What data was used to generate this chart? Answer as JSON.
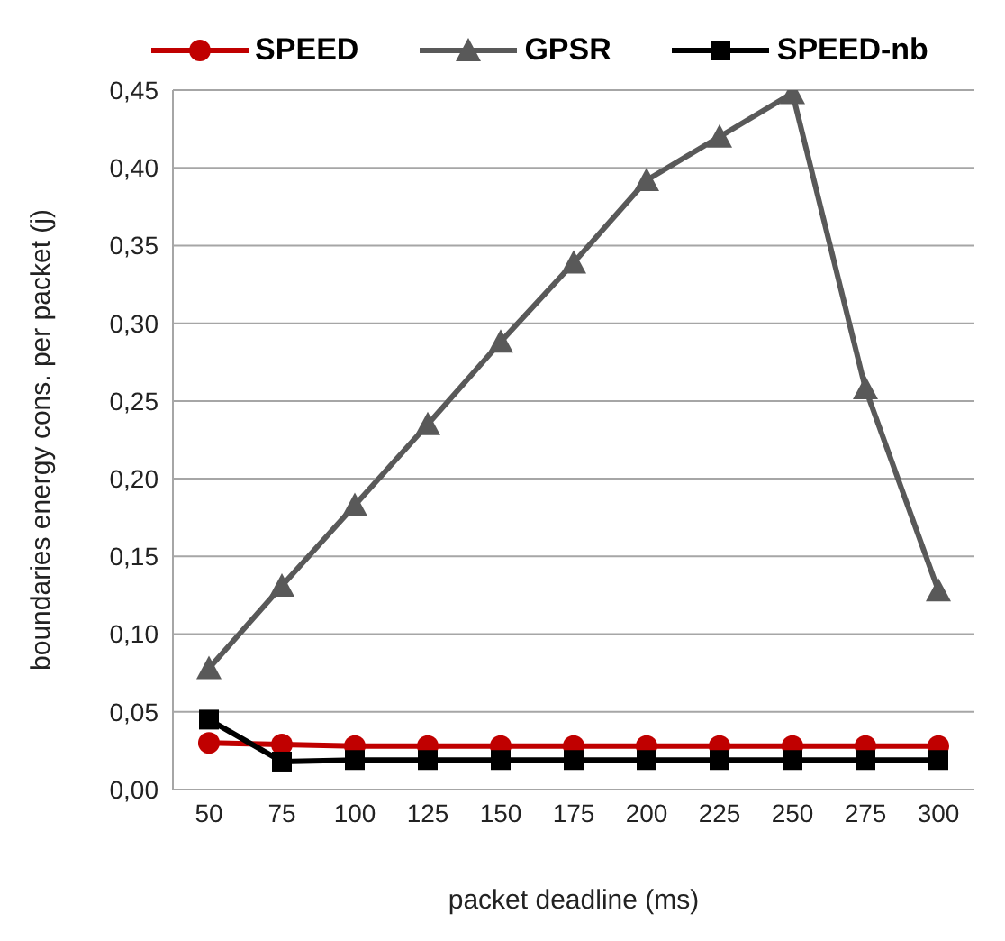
{
  "chart_data": {
    "type": "line",
    "xlabel": "packet deadline (ms)",
    "ylabel": "boundaries energy cons. per packet (j)",
    "categories": [
      "50",
      "75",
      "100",
      "125",
      "150",
      "175",
      "200",
      "225",
      "250",
      "275",
      "300"
    ],
    "series": [
      {
        "name": "SPEED",
        "color": "#c00000",
        "marker": "circle",
        "values": [
          0.03,
          0.029,
          0.028,
          0.028,
          0.028,
          0.028,
          0.028,
          0.028,
          0.028,
          0.028,
          0.028
        ]
      },
      {
        "name": "GPSR",
        "color": "#595959",
        "marker": "triangle",
        "values": [
          0.078,
          0.131,
          0.183,
          0.235,
          0.288,
          0.339,
          0.392,
          0.42,
          0.448,
          0.258,
          0.128
        ]
      },
      {
        "name": "SPEED-nb",
        "color": "#000000",
        "marker": "square",
        "values": [
          0.045,
          0.018,
          0.019,
          0.019,
          0.019,
          0.019,
          0.019,
          0.019,
          0.019,
          0.019,
          0.019
        ]
      }
    ],
    "ylim": [
      0,
      0.45
    ],
    "yticks": [
      {
        "value": 0,
        "label": "0,00"
      },
      {
        "value": 0.05,
        "label": "0,05"
      },
      {
        "value": 0.1,
        "label": "0,10"
      },
      {
        "value": 0.15,
        "label": "0,15"
      },
      {
        "value": 0.2,
        "label": "0,20"
      },
      {
        "value": 0.25,
        "label": "0,25"
      },
      {
        "value": 0.3,
        "label": "0,30"
      },
      {
        "value": 0.35,
        "label": "0,35"
      },
      {
        "value": 0.4,
        "label": "0,40"
      },
      {
        "value": 0.45,
        "label": "0,45"
      }
    ],
    "grid": "y",
    "legend": "top",
    "line_style": "solid"
  }
}
